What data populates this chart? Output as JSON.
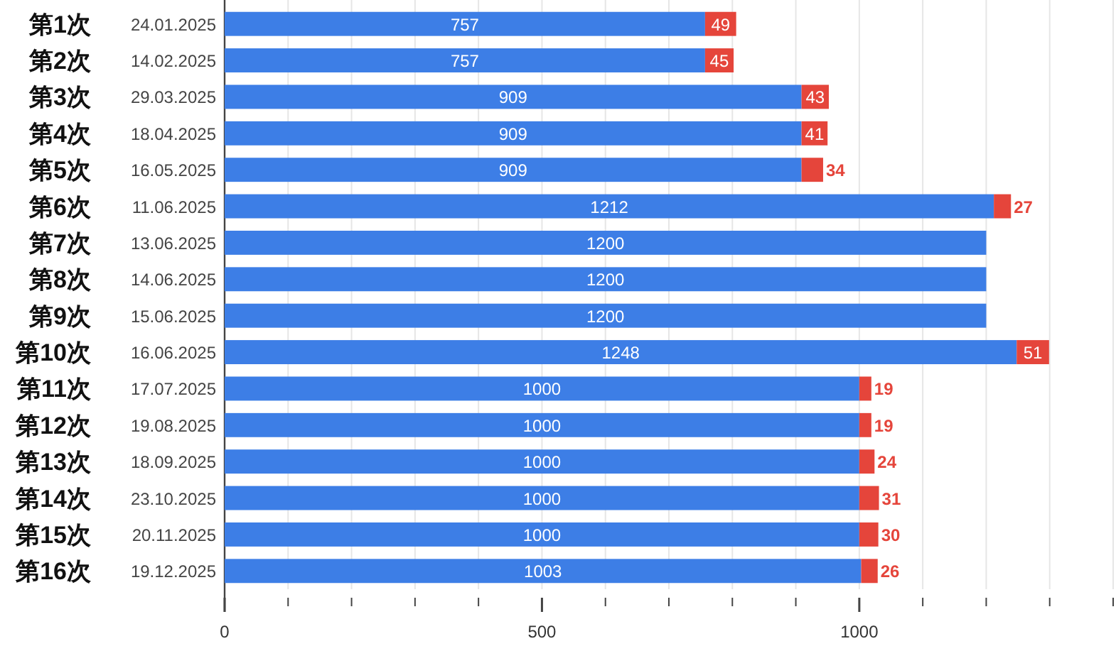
{
  "chart_data": {
    "type": "bar",
    "orientation": "horizontal",
    "stacked": true,
    "data_labels": true,
    "grid": "x",
    "categories": [
      "第1次 24.01.2025",
      "第2次 14.02.2025",
      "第3次 29.03.2025",
      "第4次 18.04.2025",
      "第5次 16.05.2025",
      "第6次 11.06.2025",
      "第7次 13.06.2025",
      "第8次 14.06.2025",
      "第9次 15.06.2025",
      "第10次 16.06.2025",
      "第11次 17.07.2025",
      "第12次 19.08.2025",
      "第13次 18.09.2025",
      "第14次 23.10.2025",
      "第15次 20.11.2025",
      "第16次 19.12.2025"
    ],
    "series": [
      {
        "color": "#3d7ee6",
        "values": [
          757,
          757,
          909,
          909,
          909,
          1212,
          1200,
          1200,
          1200,
          1248,
          1000,
          1000,
          1000,
          1000,
          1000,
          1003
        ]
      },
      {
        "color": "#e5453b",
        "values": [
          49,
          45,
          43,
          41,
          34,
          27,
          null,
          null,
          null,
          51,
          19,
          19,
          24,
          31,
          30,
          26
        ]
      }
    ],
    "xlim": [
      0,
      1400
    ],
    "xticks": [
      0,
      {
        "value": 100,
        "label": null
      },
      {
        "value": 200,
        "label": null
      },
      {
        "value": 300,
        "label": null
      },
      {
        "value": 400,
        "label": null
      },
      500,
      {
        "value": 600,
        "label": null
      },
      {
        "value": 700,
        "label": null
      },
      {
        "value": 800,
        "label": null
      },
      {
        "value": 900,
        "label": null
      },
      1000,
      {
        "value": 1100,
        "label": null
      },
      {
        "value": 1200,
        "label": null
      },
      {
        "value": 1300,
        "label": null
      },
      {
        "value": 1400,
        "label": null
      }
    ]
  }
}
